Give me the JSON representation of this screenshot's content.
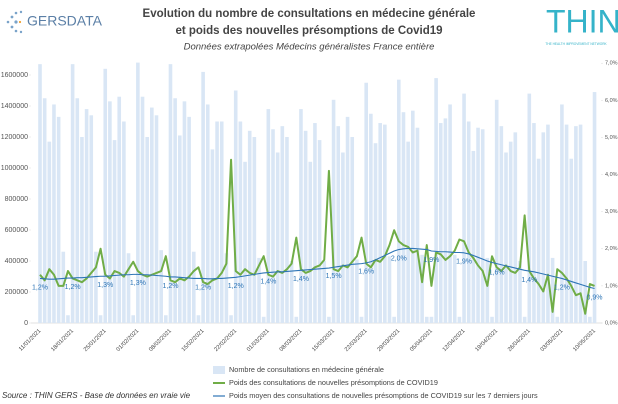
{
  "chart_data": {
    "type": "bar",
    "title": "Evolution du nombre de consultations en médecine générale",
    "title_line2": "et poids des nouvelles présomptions de Covid19",
    "subtitle": "Données extrapolées Médecins généralistes France entière",
    "logo_left": "GERSDATA",
    "logo_right": "THIN",
    "logo_right_tagline": "THE HEALTH IMPROVEMENT NETWORK",
    "source": "Source : THIN GERS - Base de données en vraie vie",
    "categories": [
      "11/01/2021",
      null,
      null,
      null,
      null,
      null,
      null,
      "18/01/2021",
      null,
      null,
      null,
      null,
      null,
      null,
      "25/01/2021",
      null,
      null,
      null,
      null,
      null,
      null,
      "01/02/2021",
      null,
      null,
      null,
      null,
      null,
      null,
      "08/02/2021",
      null,
      null,
      null,
      null,
      null,
      null,
      "15/02/2021",
      null,
      null,
      null,
      null,
      null,
      null,
      "22/02/2021",
      null,
      null,
      null,
      null,
      null,
      null,
      "01/03/2021",
      null,
      null,
      null,
      null,
      null,
      null,
      "08/03/2021",
      null,
      null,
      null,
      null,
      null,
      null,
      "15/03/2021",
      null,
      null,
      null,
      null,
      null,
      null,
      "22/03/2021",
      null,
      null,
      null,
      null,
      null,
      null,
      "29/03/2021",
      null,
      null,
      null,
      null,
      null,
      null,
      "05/04/2021",
      null,
      null,
      null,
      null,
      null,
      null,
      "12/04/2021",
      null,
      null,
      null,
      null,
      null,
      null,
      "19/04/2021",
      null,
      null,
      null,
      null,
      null,
      null,
      "26/04/2021",
      null,
      null,
      null,
      null,
      null,
      null,
      "03/05/2021",
      null,
      null,
      null,
      null,
      null,
      null,
      "10/05/2021"
    ],
    "ylim": [
      0,
      1700000
    ],
    "yticks": [
      0,
      200000,
      400000,
      600000,
      800000,
      1000000,
      1200000,
      1400000,
      1600000
    ],
    "y2lim": [
      0,
      7.1
    ],
    "y2ticks": [
      {
        "value": 0,
        "label": "0,0%"
      },
      {
        "value": 1,
        "label": "1,0%"
      },
      {
        "value": 2,
        "label": "2,0%"
      },
      {
        "value": 3,
        "label": "3,0%"
      },
      {
        "value": 4,
        "label": "4,0%"
      },
      {
        "value": 5,
        "label": "5,0%"
      },
      {
        "value": 6,
        "label": "6,0%"
      },
      {
        "value": 7,
        "label": "7,0%"
      }
    ],
    "series": [
      {
        "name": "Nombre de consultations en médecine générale",
        "type": "bar",
        "color": "#d9e6f5",
        "values": [
          1670000,
          1450000,
          1170000,
          1410000,
          1330000,
          460000,
          50000,
          1670000,
          1450000,
          1200000,
          1380000,
          1340000,
          460000,
          50000,
          1640000,
          1430000,
          1180000,
          1460000,
          1300000,
          450000,
          50000,
          1680000,
          1460000,
          1200000,
          1390000,
          1340000,
          470000,
          50000,
          1670000,
          1450000,
          1210000,
          1430000,
          1330000,
          460000,
          50000,
          1620000,
          1410000,
          1120000,
          1300000,
          1300000,
          450000,
          50000,
          1500000,
          1300000,
          1040000,
          1240000,
          1200000,
          420000,
          40000,
          1380000,
          1250000,
          1100000,
          1270000,
          1200000,
          400000,
          40000,
          1380000,
          1240000,
          1040000,
          1290000,
          1180000,
          400000,
          40000,
          1440000,
          1270000,
          1100000,
          1330000,
          1200000,
          410000,
          40000,
          1550000,
          1350000,
          1160000,
          1290000,
          1280000,
          430000,
          40000,
          1570000,
          1360000,
          1170000,
          1370000,
          1260000,
          440000,
          40000,
          40000,
          1580000,
          1290000,
          1320000,
          1410000,
          440000,
          40000,
          1480000,
          1300000,
          1110000,
          1260000,
          1250000,
          420000,
          40000,
          1440000,
          1270000,
          1100000,
          1170000,
          1230000,
          400000,
          40000,
          1480000,
          1290000,
          1060000,
          1230000,
          1280000,
          420000,
          40000,
          1410000,
          1280000,
          1060000,
          1270000,
          1280000,
          400000,
          40000,
          1490000
        ]
      },
      {
        "name": "Poids des consultations de nouvelles présomptions de COVID19",
        "type": "line",
        "axis": "y2",
        "color": "#70ad47",
        "values": [
          1.3,
          1.15,
          1.45,
          1.3,
          1.0,
          1.0,
          1.4,
          1.2,
          1.15,
          1.1,
          1.2,
          1.35,
          1.5,
          2.0,
          1.3,
          1.2,
          1.4,
          1.35,
          1.25,
          1.45,
          1.65,
          1.4,
          1.3,
          1.25,
          1.3,
          1.35,
          1.4,
          1.8,
          1.15,
          1.1,
          1.2,
          1.15,
          1.25,
          1.4,
          1.5,
          1.1,
          1.05,
          1.15,
          1.2,
          1.35,
          1.6,
          4.4,
          1.4,
          1.3,
          1.45,
          1.35,
          1.3,
          1.55,
          1.8,
          1.3,
          1.25,
          1.4,
          1.35,
          1.45,
          1.6,
          2.3,
          1.45,
          1.35,
          1.4,
          1.5,
          1.55,
          1.7,
          4.1,
          1.45,
          1.4,
          1.55,
          1.5,
          1.65,
          1.8,
          2.3,
          1.6,
          1.5,
          1.7,
          1.65,
          1.8,
          2.1,
          2.5,
          2.2,
          2.1,
          2.05,
          1.9,
          1.95,
          1.1,
          2.1,
          1.0,
          1.9,
          1.85,
          1.7,
          1.8,
          1.95,
          2.25,
          2.2,
          1.9,
          1.75,
          1.55,
          1.4,
          1.0,
          1.8,
          1.5,
          1.4,
          1.55,
          1.4,
          1.35,
          1.5,
          2.9,
          1.4,
          1.2,
          1.05,
          0.85,
          1.3,
          0.3,
          1.45,
          1.35,
          1.2,
          1.0,
          0.75,
          0.8,
          0.25,
          1.05,
          1.0
        ]
      },
      {
        "name": "Poids moyen des consultations de nouvelles présomptions de COVID19 sur les 7 derniers jours",
        "type": "line",
        "axis": "y2",
        "color": "#2e75b6",
        "values": [
          1.2,
          1.19,
          1.18,
          1.18,
          1.19,
          1.2,
          1.21,
          1.21,
          1.22,
          1.22,
          1.23,
          1.24,
          1.25,
          1.26,
          1.26,
          1.27,
          1.28,
          1.29,
          1.3,
          1.3,
          1.31,
          1.31,
          1.3,
          1.3,
          1.29,
          1.28,
          1.27,
          1.26,
          1.24,
          1.24,
          1.23,
          1.22,
          1.21,
          1.2,
          1.2,
          1.2,
          1.19,
          1.19,
          1.2,
          1.2,
          1.21,
          1.22,
          1.23,
          1.25,
          1.27,
          1.29,
          1.31,
          1.33,
          1.35,
          1.36,
          1.37,
          1.38,
          1.38,
          1.39,
          1.4,
          1.41,
          1.42,
          1.43,
          1.44,
          1.45,
          1.46,
          1.47,
          1.48,
          1.5,
          1.52,
          1.54,
          1.56,
          1.58,
          1.59,
          1.6,
          1.62,
          1.65,
          1.7,
          1.76,
          1.82,
          1.88,
          1.94,
          1.98,
          2.0,
          2.01,
          2.01,
          2.0,
          1.99,
          1.98,
          1.94,
          1.93,
          1.92,
          1.92,
          1.91,
          1.9,
          1.9,
          1.89,
          1.86,
          1.82,
          1.77,
          1.72,
          1.67,
          1.63,
          1.6,
          1.57,
          1.54,
          1.51,
          1.48,
          1.45,
          1.42,
          1.4,
          1.38,
          1.35,
          1.32,
          1.29,
          1.26,
          1.23,
          1.2,
          1.16,
          1.12,
          1.08,
          1.04,
          1.0,
          0.96,
          0.93
        ],
        "value_labels": [
          "1,2%",
          null,
          null,
          null,
          null,
          null,
          null,
          "1,2%",
          null,
          null,
          null,
          null,
          null,
          null,
          "1,3%",
          null,
          null,
          null,
          null,
          null,
          null,
          "1,3%",
          null,
          null,
          null,
          null,
          null,
          null,
          "1,2%",
          null,
          null,
          null,
          null,
          null,
          null,
          "1,2%",
          null,
          null,
          null,
          null,
          null,
          null,
          "1,2%",
          null,
          null,
          null,
          null,
          null,
          null,
          "1,4%",
          null,
          null,
          null,
          null,
          null,
          null,
          "1,4%",
          null,
          null,
          null,
          null,
          null,
          null,
          "1,5%",
          null,
          null,
          null,
          null,
          null,
          null,
          "1,6%",
          null,
          null,
          null,
          null,
          null,
          null,
          "2,0%",
          null,
          null,
          null,
          null,
          null,
          null,
          "1,9%",
          null,
          null,
          null,
          null,
          null,
          null,
          "1,9%",
          null,
          null,
          null,
          null,
          null,
          null,
          "1,6%",
          null,
          null,
          null,
          null,
          null,
          null,
          "1,4%",
          null,
          null,
          null,
          null,
          null,
          null,
          "1,2%",
          null,
          null,
          null,
          null,
          null,
          null,
          "0,9%"
        ]
      }
    ]
  }
}
